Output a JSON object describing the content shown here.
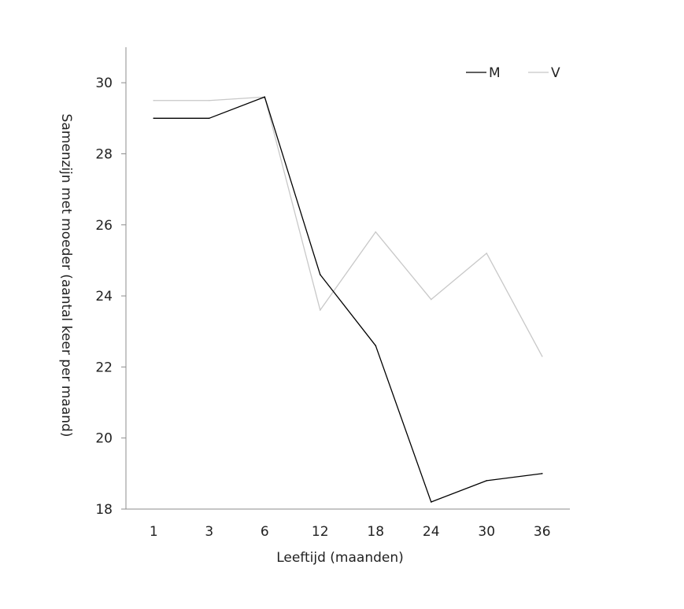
{
  "chart_data": {
    "type": "line",
    "title": "",
    "xlabel": "Leeftijd (maanden)",
    "ylabel": "Samenzijn met moeder (aantal keer per maand)",
    "categories": [
      "1",
      "3",
      "6",
      "12",
      "18",
      "24",
      "30",
      "36"
    ],
    "series": [
      {
        "name": "M",
        "color": "#000000",
        "values": [
          29.0,
          29.0,
          29.6,
          24.6,
          22.6,
          18.2,
          18.8,
          19.0
        ]
      },
      {
        "name": "V",
        "color": "#c8c8c8",
        "values": [
          29.5,
          29.5,
          29.6,
          23.6,
          25.8,
          23.9,
          25.2,
          22.3
        ]
      }
    ],
    "ylim": [
      18,
      31
    ],
    "yticks": [
      18,
      20,
      22,
      24,
      26,
      28,
      30
    ],
    "grid": false,
    "legend_position": "top-right"
  }
}
